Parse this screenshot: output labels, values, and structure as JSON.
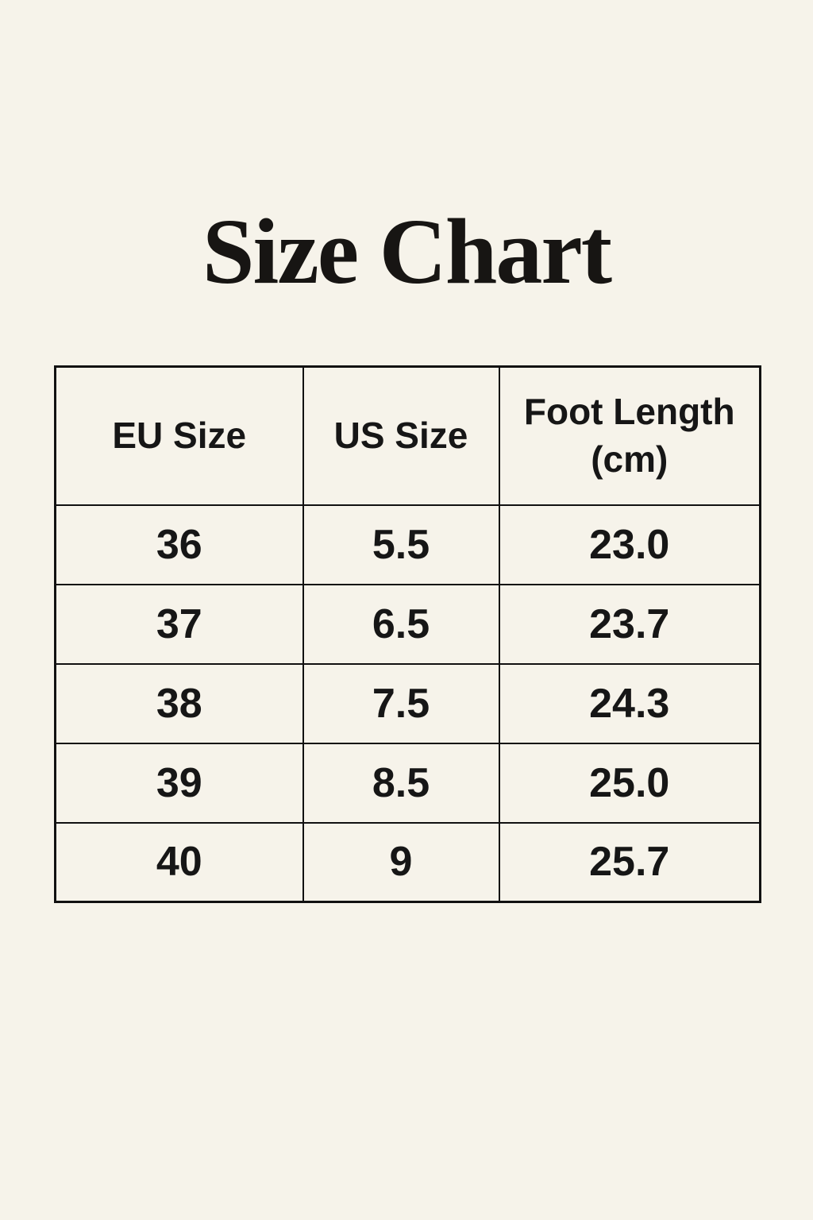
{
  "page": {
    "background_color": "#F6F3EA",
    "text_color": "#161616",
    "border_color": "#111111"
  },
  "title": "Size Chart",
  "size_table": {
    "headers": [
      "EU Size",
      "US Size",
      "Foot Length (cm)"
    ],
    "rows": [
      [
        "36",
        "5.5",
        "23.0"
      ],
      [
        "37",
        "6.5",
        "23.7"
      ],
      [
        "38",
        "7.5",
        "24.3"
      ],
      [
        "39",
        "8.5",
        "25.0"
      ],
      [
        "40",
        "9",
        "25.7"
      ]
    ]
  },
  "chart_data": {
    "type": "table",
    "title": "Size Chart",
    "columns": [
      "EU Size",
      "US Size",
      "Foot Length (cm)"
    ],
    "rows": [
      {
        "eu_size": 36,
        "us_size": 5.5,
        "foot_length_cm": 23.0
      },
      {
        "eu_size": 37,
        "us_size": 6.5,
        "foot_length_cm": 23.7
      },
      {
        "eu_size": 38,
        "us_size": 7.5,
        "foot_length_cm": 24.3
      },
      {
        "eu_size": 39,
        "us_size": 8.5,
        "foot_length_cm": 25.0
      },
      {
        "eu_size": 40,
        "us_size": 9,
        "foot_length_cm": 25.7
      }
    ]
  }
}
